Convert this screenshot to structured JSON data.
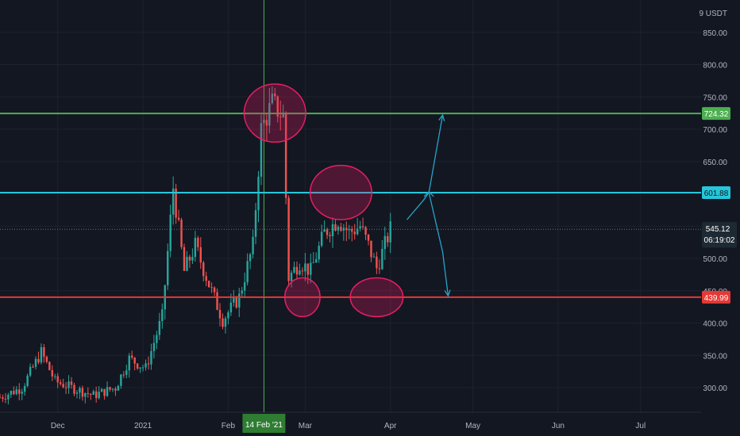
{
  "currency": "USDT",
  "currency_prefix": "9",
  "chart_data": {
    "type": "candlestick",
    "y_ticks": [
      "850.00",
      "800.00",
      "750.00",
      "700.00",
      "650.00",
      "600.00",
      "550.00",
      "500.00",
      "450.00",
      "400.00",
      "350.00",
      "300.00"
    ],
    "x_ticks": [
      {
        "label": "Dec",
        "date": "2020-12-01"
      },
      {
        "label": "2021",
        "date": "2021-01-01"
      },
      {
        "label": "Feb",
        "date": "2021-02-01"
      },
      {
        "label": "Mar",
        "date": "2021-03-01"
      },
      {
        "label": "Apr",
        "date": "2021-04-01"
      },
      {
        "label": "May",
        "date": "2021-05-01"
      },
      {
        "label": "Jun",
        "date": "2021-06-01"
      },
      {
        "label": "Jul",
        "date": "2021-07-01"
      }
    ],
    "ylim": [
      262,
      900
    ],
    "xlim": [
      "2020-11-10",
      "2021-07-23"
    ],
    "crosshair": {
      "label": "14 Feb '21",
      "date": "2021-02-14"
    },
    "last_price": {
      "value": 545.12,
      "label": "545.12",
      "countdown": "06:19:02"
    },
    "levels": [
      {
        "value": 724.32,
        "label": "724.32",
        "color": "#4caf50"
      },
      {
        "value": 601.88,
        "label": "601.88",
        "color": "#26c6da"
      },
      {
        "value": 439.99,
        "label": "439.99",
        "color": "#e53935"
      }
    ],
    "anchors": [
      [
        "2020-11-10",
        285
      ],
      [
        "2020-11-18",
        300
      ],
      [
        "2020-11-25",
        355
      ],
      [
        "2020-11-30",
        310
      ],
      [
        "2020-12-06",
        300
      ],
      [
        "2020-12-14",
        288
      ],
      [
        "2020-12-22",
        300
      ],
      [
        "2020-12-27",
        345
      ],
      [
        "2021-01-02",
        330
      ],
      [
        "2021-01-08",
        410
      ],
      [
        "2021-01-12",
        610
      ],
      [
        "2021-01-16",
        480
      ],
      [
        "2021-01-20",
        520
      ],
      [
        "2021-01-25",
        460
      ],
      [
        "2021-01-30",
        405
      ],
      [
        "2021-02-05",
        440
      ],
      [
        "2021-02-10",
        520
      ],
      [
        "2021-02-13",
        700
      ],
      [
        "2021-02-17",
        740
      ],
      [
        "2021-02-21",
        720
      ],
      [
        "2021-02-23",
        470
      ],
      [
        "2021-02-27",
        495
      ],
      [
        "2021-03-03",
        480
      ],
      [
        "2021-03-08",
        540
      ],
      [
        "2021-03-13",
        560
      ],
      [
        "2021-03-17",
        540
      ],
      [
        "2021-03-21",
        550
      ],
      [
        "2021-03-24",
        520
      ],
      [
        "2021-03-27",
        485
      ],
      [
        "2021-04-01",
        545
      ]
    ],
    "candle_color_up": "#26a69a",
    "candle_color_down": "#ef5350",
    "annotations": {
      "ellipses": [
        {
          "date": "2021-02-18",
          "value": 725,
          "rx_days": 7,
          "ry_value": 45
        },
        {
          "date": "2021-03-14",
          "value": 602,
          "rx_days": 7,
          "ry_value": 42
        },
        {
          "date": "2021-02-28",
          "value": 440,
          "rx_days": 4,
          "ry_value": 30
        },
        {
          "date": "2021-03-27",
          "value": 440,
          "rx_days": 6,
          "ry_value": 30
        }
      ],
      "arrows": [
        {
          "points": [
            [
              "2021-04-07",
              560
            ],
            [
              "2021-04-13",
              590
            ],
            [
              "2021-04-15",
              602
            ],
            [
              "2021-04-20",
              722
            ]
          ]
        },
        {
          "points": [
            [
              "2021-04-15",
              602
            ],
            [
              "2021-04-20",
              510
            ],
            [
              "2021-04-22",
              442
            ]
          ]
        }
      ]
    }
  }
}
